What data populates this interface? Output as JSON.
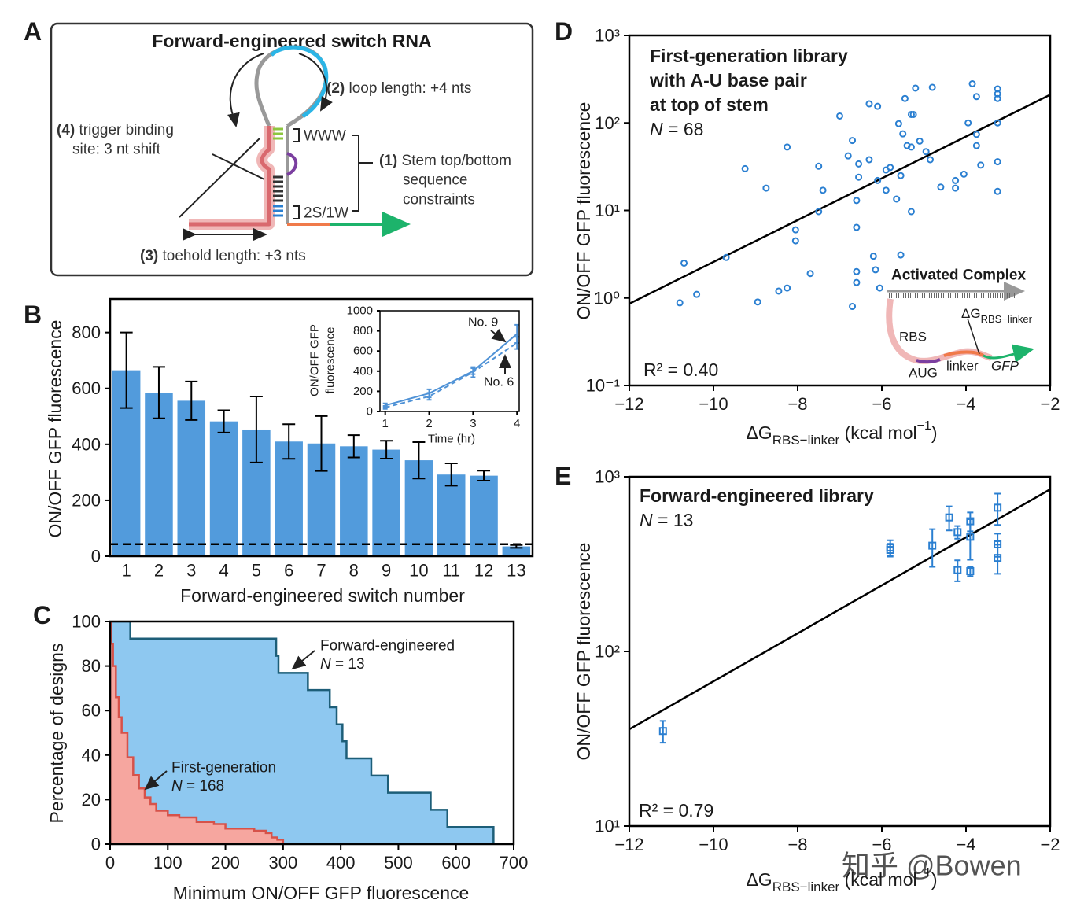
{
  "diagram": {
    "panel": "A",
    "title": "Forward-engineered switch RNA",
    "labels": [
      {
        "num": "(2)",
        "lines": [
          "loop length: +4 nts"
        ]
      },
      {
        "num": "(4)",
        "lines": [
          "trigger binding",
          "site: 3 nt shift"
        ]
      },
      {
        "num": "(1)",
        "lines": [
          "Stem top/bottom",
          "sequence",
          "constraints"
        ]
      },
      {
        "num": "(3)",
        "lines": [
          "toehold length: +3 nts"
        ]
      }
    ],
    "marks": [
      "WWW",
      "2S/1W"
    ]
  },
  "watermark": "知乎 @Bowen",
  "chart_data": [
    {
      "type": "bar",
      "panel": "B",
      "ylabel": "ON/OFF GFP fluorescence",
      "xlabel": "Forward-engineered switch number",
      "categories": [
        "1",
        "2",
        "3",
        "4",
        "5",
        "6",
        "7",
        "8",
        "9",
        "10",
        "11",
        "12",
        "13"
      ],
      "values": [
        665,
        585,
        556,
        482,
        453,
        410,
        403,
        393,
        381,
        343,
        292,
        288,
        35
      ],
      "errors": [
        135,
        92,
        69,
        40,
        118,
        62,
        98,
        40,
        32,
        65,
        40,
        18,
        5
      ],
      "color": "#529bdc",
      "ylim": [
        0,
        920
      ],
      "yticks": [
        0,
        200,
        400,
        600,
        800
      ],
      "hline": 43
    },
    {
      "type": "line",
      "ylabel": [
        "ON/OFF GFP",
        "fluorescence"
      ],
      "xlabel": "Time (hr)",
      "x": [
        1,
        2,
        3,
        4
      ],
      "series": [
        {
          "name": "No. 9",
          "color": "#4f92d6",
          "values": [
            60,
            180,
            400,
            770
          ],
          "errors": [
            20,
            40,
            30,
            90
          ]
        },
        {
          "name": "No. 6",
          "color": "#4f92d6",
          "dashed": true,
          "values": [
            40,
            150,
            390,
            680
          ],
          "errors": [
            15,
            35,
            50,
            60
          ]
        }
      ],
      "xlim": [
        0.88,
        4.05
      ],
      "xticks": [
        1,
        2,
        3,
        4
      ],
      "ylim": [
        0,
        1000
      ],
      "yticks": [
        0,
        200,
        400,
        600,
        800,
        1000
      ]
    },
    {
      "type": "step",
      "panel": "C",
      "ylabel": "Percentage of designs",
      "xlabel": "Minimum ON/OFF GFP fluorescence",
      "series": [
        {
          "name": "Forward-engineered",
          "n_symbol": "N",
          "n_text": " = 13",
          "color": "#8ec8f0",
          "edge": "#1d5e78",
          "x": [
            0,
            35,
            288,
            292,
            343,
            381,
            393,
            403,
            410,
            453,
            482,
            556,
            585,
            665
          ],
          "values": [
            100,
            92.3,
            84.6,
            76.9,
            69.2,
            61.5,
            53.8,
            46.2,
            38.5,
            30.8,
            23.1,
            15.4,
            7.7,
            0
          ]
        },
        {
          "name": "First-generation",
          "n_symbol": "N",
          "n_text": " = 168",
          "color": "#f6a69f",
          "edge": "#d6524a",
          "x": [
            0,
            2,
            5,
            10,
            15,
            20,
            30,
            40,
            50,
            60,
            70,
            80,
            100,
            120,
            150,
            180,
            200,
            230,
            250,
            270,
            280,
            290,
            300
          ],
          "values": [
            100,
            90,
            80,
            66,
            57,
            50,
            39,
            31,
            25,
            21,
            18,
            15,
            13,
            12,
            10,
            9,
            7,
            7,
            6,
            5,
            3,
            2,
            0
          ]
        }
      ],
      "xlim": [
        0,
        700
      ],
      "xticks": [
        0,
        100,
        200,
        300,
        400,
        500,
        600,
        700
      ],
      "ylim": [
        0,
        100
      ],
      "yticks": [
        0,
        20,
        40,
        60,
        80,
        100
      ]
    },
    {
      "type": "scatter",
      "panel": "D",
      "title": [
        "First-generation library",
        "with A-U base pair",
        "at top of stem"
      ],
      "n_symbol": "N",
      "n_text": " = 68",
      "r2": "R² = 0.40",
      "ylabel": "ON/OFF GFP fluorescence",
      "xlabel": {
        "main": "ΔG",
        "sub": "RBS−linker",
        "rest": " (kcal mol",
        "sup": "−1",
        "end": ")"
      },
      "marker": "circle",
      "color": "#2a7fd1",
      "x": [
        -10.8,
        -10.7,
        -10.4,
        -9.7,
        -9.25,
        -8.95,
        -8.75,
        -8.45,
        -8.25,
        -8.25,
        -8.05,
        -8.05,
        -7.7,
        -7.5,
        -7.5,
        -7.4,
        -7.0,
        -6.8,
        -6.7,
        -6.7,
        -6.6,
        -6.6,
        -6.6,
        -6.55,
        -6.6,
        -6.55,
        -6.3,
        -6.3,
        -6.1,
        -6.1,
        -6.2,
        -6.15,
        -6.05,
        -5.9,
        -5.9,
        -5.8,
        -5.65,
        -5.55,
        -5.55,
        -5.5,
        -5.4,
        -5.45,
        -5.3,
        -5.3,
        -5.2,
        -5.25,
        -5.3,
        -5.1,
        -4.95,
        -4.85,
        -4.8,
        -4.6,
        -4.25,
        -4.25,
        -4.05,
        -3.95,
        -3.85,
        -3.75,
        -3.75,
        -3.75,
        -3.65,
        -3.25,
        -3.25,
        -3.25,
        -3.25,
        -3.25,
        -3.25,
        -5.6
      ],
      "values": [
        0.88,
        2.5,
        1.1,
        2.9,
        30,
        0.9,
        18,
        1.2,
        1.3,
        53,
        4.5,
        6,
        1.9,
        9.7,
        32,
        17,
        120,
        42,
        63,
        0.8,
        2,
        1.5,
        6.4,
        34,
        13,
        24,
        38,
        165,
        155,
        22,
        3,
        2.1,
        1.3,
        17,
        29,
        31,
        13.5,
        25,
        3.1,
        75,
        55,
        190,
        53,
        125,
        250,
        125,
        9.7,
        62,
        47,
        38,
        255,
        18.5,
        18,
        22,
        26,
        100,
        280,
        200,
        55,
        74,
        33,
        245,
        190,
        100,
        36,
        16.5,
        215,
        98
      ],
      "fit": {
        "x": [
          -12,
          -2
        ],
        "y": [
          0.86,
          210
        ]
      },
      "xlim": [
        -12,
        -2
      ],
      "xticks": [
        {
          "value": -12,
          "label": "−12"
        },
        {
          "value": -10,
          "label": "−10"
        },
        {
          "value": -8,
          "label": "−8"
        },
        {
          "value": -6,
          "label": "−6"
        },
        {
          "value": -4,
          "label": "−4"
        },
        {
          "value": -2,
          "label": "−2"
        }
      ],
      "ylim": [
        0.1,
        1000
      ],
      "ylog": true,
      "yticks": [
        {
          "value": 0.1,
          "label": "10⁻¹"
        },
        {
          "value": 1,
          "label": "10⁰"
        },
        {
          "value": 10,
          "label": "10¹"
        },
        {
          "value": 100,
          "label": "10²"
        },
        {
          "value": 1000,
          "label": "10³"
        }
      ],
      "inset_labels": {
        "title": "Activated Complex",
        "dg": "ΔG",
        "dg_sub": "RBS−linker",
        "rbs": "RBS",
        "aug": "AUG",
        "linker": "linker",
        "gfp": "GFP"
      }
    },
    {
      "type": "scatter",
      "panel": "E",
      "title": [
        "Forward-engineered library"
      ],
      "n_symbol": "N",
      "n_text": " = 13",
      "r2": "R² = 0.79",
      "ylabel": "ON/OFF GFP fluorescence",
      "xlabel": {
        "main": "ΔG",
        "sub": "RBS−linker",
        "rest": " (kcal mol",
        "sup": "−1",
        "end": ")"
      },
      "marker": "square",
      "color": "#2a7fd1",
      "x": [
        -3.25,
        -4.4,
        -3.9,
        -4.2,
        -3.9,
        -3.25,
        -4.8,
        -5.8,
        -5.8,
        -3.25,
        -4.2,
        -3.9,
        -11.2
      ],
      "values": [
        665,
        585,
        556,
        482,
        453,
        410,
        403,
        393,
        381,
        343,
        292,
        288,
        35
      ],
      "errors": [
        135,
        92,
        69,
        40,
        118,
        62,
        98,
        40,
        32,
        65,
        40,
        18,
        5
      ],
      "fit": {
        "x": [
          -12,
          -2
        ],
        "y": [
          35.8,
          847
        ]
      },
      "xlim": [
        -12,
        -2
      ],
      "xticks": [
        {
          "value": -12,
          "label": "−12"
        },
        {
          "value": -10,
          "label": "−10"
        },
        {
          "value": -8,
          "label": "−8"
        },
        {
          "value": -6,
          "label": "−6"
        },
        {
          "value": -4,
          "label": "−4"
        },
        {
          "value": -2,
          "label": "−2"
        }
      ],
      "ylim": [
        10,
        1000
      ],
      "ylog": true,
      "yticks": [
        {
          "value": 10,
          "label": "10¹"
        },
        {
          "value": 100,
          "label": "10²"
        },
        {
          "value": 1000,
          "label": "10³"
        }
      ]
    }
  ]
}
